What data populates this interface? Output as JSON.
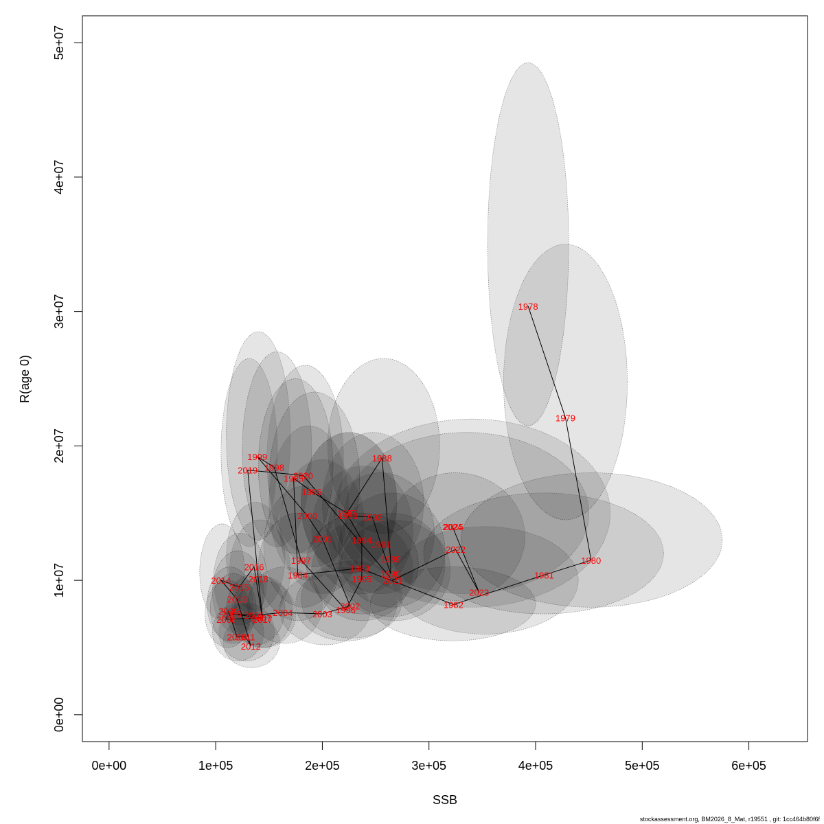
{
  "footer": "stockassessment.org, BM2026_8_Mat, r19551 , git: 1cc464b80f6f",
  "chart_data": {
    "type": "scatter",
    "title": "",
    "xlabel": "SSB",
    "ylabel": "R(age 0)",
    "xlim": [
      -25000,
      655000
    ],
    "ylim": [
      -2000000,
      52000000
    ],
    "x_ticks": [
      0,
      100000,
      200000,
      300000,
      400000,
      500000,
      600000
    ],
    "x_tick_labels": [
      "0e+00",
      "1e+05",
      "2e+05",
      "3e+05",
      "4e+05",
      "5e+05",
      "6e+05"
    ],
    "y_ticks": [
      0,
      10000000,
      20000000,
      30000000,
      40000000,
      50000000
    ],
    "y_tick_labels": [
      "0e+00",
      "1e+07",
      "2e+07",
      "3e+07",
      "4e+07",
      "5e+07"
    ],
    "grid": false,
    "label_color": "#ff0000",
    "line_color": "#000000",
    "ellipse_fill": "#000000",
    "ellipse_fill_opacity": 0.1,
    "ellipse_stroke": "#777777",
    "points": [
      {
        "year": "1978",
        "ssb": 393000,
        "rec": 30400000,
        "ssb_lo": 355000,
        "ssb_hi": 431000,
        "rec_lo": 21500000,
        "rec_hi": 48500000
      },
      {
        "year": "1979",
        "ssb": 428000,
        "rec": 22100000,
        "ssb_lo": 370000,
        "ssb_hi": 486000,
        "rec_lo": 14500000,
        "rec_hi": 35000000
      },
      {
        "year": "1980",
        "ssb": 452000,
        "rec": 11500000,
        "ssb_lo": 330000,
        "ssb_hi": 575000,
        "rec_lo": 8000000,
        "rec_hi": 18000000
      },
      {
        "year": "1981",
        "ssb": 408000,
        "rec": 10400000,
        "ssb_lo": 295000,
        "ssb_hi": 520000,
        "rec_lo": 7500000,
        "rec_hi": 16500000
      },
      {
        "year": "1982",
        "ssb": 323000,
        "rec": 8200000,
        "ssb_lo": 245000,
        "ssb_hi": 400000,
        "rec_lo": 5500000,
        "rec_hi": 11000000
      },
      {
        "year": "1983",
        "ssb": 235000,
        "rec": 10900000,
        "ssb_lo": 185000,
        "ssb_hi": 290000,
        "rec_lo": 7500000,
        "rec_hi": 15000000
      },
      {
        "year": "1984",
        "ssb": 177000,
        "rec": 10400000,
        "ssb_lo": 140000,
        "ssb_hi": 215000,
        "rec_lo": 7000000,
        "rec_hi": 15000000
      },
      {
        "year": "1985",
        "ssb": 173000,
        "rec": 17600000,
        "ssb_lo": 140000,
        "ssb_hi": 210000,
        "rec_lo": 12000000,
        "rec_hi": 25000000
      },
      {
        "year": "1986",
        "ssb": 190000,
        "rec": 16600000,
        "ssb_lo": 150000,
        "ssb_hi": 235000,
        "rec_lo": 11000000,
        "rec_hi": 24000000
      },
      {
        "year": "1987",
        "ssb": 223000,
        "rec": 15000000,
        "ssb_lo": 180000,
        "ssb_hi": 270000,
        "rec_lo": 10500000,
        "rec_hi": 21000000
      },
      {
        "year": "1988",
        "ssb": 256000,
        "rec": 19100000,
        "ssb_lo": 205000,
        "ssb_hi": 310000,
        "rec_lo": 13500000,
        "rec_hi": 26500000
      },
      {
        "year": "1989",
        "ssb": 264000,
        "rec": 11600000,
        "ssb_lo": 215000,
        "ssb_hi": 315000,
        "rec_lo": 8000000,
        "rec_hi": 16500000
      },
      {
        "year": "1990",
        "ssb": 264000,
        "rec": 10500000,
        "ssb_lo": 215000,
        "ssb_hi": 315000,
        "rec_lo": 7300000,
        "rec_hi": 15000000
      },
      {
        "year": "1991",
        "ssb": 255000,
        "rec": 12700000,
        "ssb_lo": 205000,
        "ssb_hi": 305000,
        "rec_lo": 9000000,
        "rec_hi": 18000000
      },
      {
        "year": "1992",
        "ssb": 247000,
        "rec": 14700000,
        "ssb_lo": 200000,
        "ssb_hi": 295000,
        "rec_lo": 10500000,
        "rec_hi": 21000000
      },
      {
        "year": "1993",
        "ssb": 224000,
        "rec": 14800000,
        "ssb_lo": 180000,
        "ssb_hi": 270000,
        "rec_lo": 10500000,
        "rec_hi": 21000000
      },
      {
        "year": "1994",
        "ssb": 237000,
        "rec": 13000000,
        "ssb_lo": 190000,
        "ssb_hi": 285000,
        "rec_lo": 9000000,
        "rec_hi": 18500000
      },
      {
        "year": "1995",
        "ssb": 237000,
        "rec": 10100000,
        "ssb_lo": 190000,
        "ssb_hi": 285000,
        "rec_lo": 7000000,
        "rec_hi": 14500000
      },
      {
        "year": "1996",
        "ssb": 222000,
        "rec": 7800000,
        "ssb_lo": 175000,
        "ssb_hi": 270000,
        "rec_lo": 5500000,
        "rec_hi": 11000000
      },
      {
        "year": "1997",
        "ssb": 180000,
        "rec": 11500000,
        "ssb_lo": 145000,
        "ssb_hi": 220000,
        "rec_lo": 8000000,
        "rec_hi": 17000000
      },
      {
        "year": "1998",
        "ssb": 155000,
        "rec": 18400000,
        "ssb_lo": 125000,
        "ssb_hi": 190000,
        "rec_lo": 12500000,
        "rec_hi": 27000000
      },
      {
        "year": "1999",
        "ssb": 139000,
        "rec": 19200000,
        "ssb_lo": 110000,
        "ssb_hi": 170000,
        "rec_lo": 13000000,
        "rec_hi": 28500000
      },
      {
        "year": "2000",
        "ssb": 186000,
        "rec": 14800000,
        "ssb_lo": 150000,
        "ssb_hi": 225000,
        "rec_lo": 10000000,
        "rec_hi": 21500000
      },
      {
        "year": "2001",
        "ssb": 200000,
        "rec": 13100000,
        "ssb_lo": 160000,
        "ssb_hi": 240000,
        "rec_lo": 9000000,
        "rec_hi": 19000000
      },
      {
        "year": "2002",
        "ssb": 226000,
        "rec": 8100000,
        "ssb_lo": 180000,
        "ssb_hi": 275000,
        "rec_lo": 5700000,
        "rec_hi": 11500000
      },
      {
        "year": "2003",
        "ssb": 200000,
        "rec": 7500000,
        "ssb_lo": 160000,
        "ssb_hi": 245000,
        "rec_lo": 5200000,
        "rec_hi": 10500000
      },
      {
        "year": "2004",
        "ssb": 163000,
        "rec": 7600000,
        "ssb_lo": 130000,
        "ssb_hi": 200000,
        "rec_lo": 5300000,
        "rec_hi": 11000000
      },
      {
        "year": "2005",
        "ssb": 136000,
        "rec": 7400000,
        "ssb_lo": 110000,
        "ssb_hi": 165000,
        "rec_lo": 5200000,
        "rec_hi": 10500000
      },
      {
        "year": "2006",
        "ssb": 115000,
        "rec": 7500000,
        "ssb_lo": 95000,
        "ssb_hi": 138000,
        "rec_lo": 5300000,
        "rec_hi": 10500000
      },
      {
        "year": "2007",
        "ssb": 143000,
        "rec": 7200000,
        "ssb_lo": 115000,
        "ssb_hi": 172000,
        "rec_lo": 5000000,
        "rec_hi": 10300000
      },
      {
        "year": "2008",
        "ssb": 110000,
        "rec": 7100000,
        "ssb_lo": 90000,
        "ssb_hi": 133000,
        "rec_lo": 5000000,
        "rec_hi": 10000000
      },
      {
        "year": "2009",
        "ssb": 112000,
        "rec": 7700000,
        "ssb_lo": 92000,
        "ssb_hi": 135000,
        "rec_lo": 5500000,
        "rec_hi": 11000000
      },
      {
        "year": "2010",
        "ssb": 120000,
        "rec": 5800000,
        "ssb_lo": 97000,
        "ssb_hi": 145000,
        "rec_lo": 4000000,
        "rec_hi": 8300000
      },
      {
        "year": "2011",
        "ssb": 128000,
        "rec": 5800000,
        "ssb_lo": 103000,
        "ssb_hi": 155000,
        "rec_lo": 4000000,
        "rec_hi": 8300000
      },
      {
        "year": "2012",
        "ssb": 133000,
        "rec": 5100000,
        "ssb_lo": 107000,
        "ssb_hi": 160000,
        "rec_lo": 3500000,
        "rec_hi": 7300000
      },
      {
        "year": "2013",
        "ssb": 120000,
        "rec": 8600000,
        "ssb_lo": 97000,
        "ssb_hi": 145000,
        "rec_lo": 6000000,
        "rec_hi": 12200000
      },
      {
        "year": "2014",
        "ssb": 105000,
        "rec": 10000000,
        "ssb_lo": 85000,
        "ssb_hi": 127000,
        "rec_lo": 7000000,
        "rec_hi": 14200000
      },
      {
        "year": "2015",
        "ssb": 122000,
        "rec": 9500000,
        "ssb_lo": 98000,
        "ssb_hi": 148000,
        "rec_lo": 6600000,
        "rec_hi": 13500000
      },
      {
        "year": "2016",
        "ssb": 136000,
        "rec": 11000000,
        "ssb_lo": 110000,
        "ssb_hi": 165000,
        "rec_lo": 7700000,
        "rec_hi": 15800000
      },
      {
        "year": "2017",
        "ssb": 144000,
        "rec": 7100000,
        "ssb_lo": 116000,
        "ssb_hi": 175000,
        "rec_lo": 5000000,
        "rec_hi": 10000000
      },
      {
        "year": "2018",
        "ssb": 140000,
        "rec": 10100000,
        "ssb_lo": 113000,
        "ssb_hi": 170000,
        "rec_lo": 7000000,
        "rec_hi": 14500000
      },
      {
        "year": "2019",
        "ssb": 130000,
        "rec": 18200000,
        "ssb_lo": 105000,
        "ssb_hi": 158000,
        "rec_lo": 12500000,
        "rec_hi": 26500000
      },
      {
        "year": "2020",
        "ssb": 182000,
        "rec": 17800000,
        "ssb_lo": 148000,
        "ssb_hi": 220000,
        "rec_lo": 12000000,
        "rec_hi": 26000000
      },
      {
        "year": "2021",
        "ssb": 266000,
        "rec": 10000000,
        "ssb_lo": 215000,
        "ssb_hi": 320000,
        "rec_lo": 7000000,
        "rec_hi": 14500000
      },
      {
        "year": "2022",
        "ssb": 325000,
        "rec": 12300000,
        "ssb_lo": 260000,
        "ssb_hi": 390000,
        "rec_lo": 8500000,
        "rec_hi": 18000000
      },
      {
        "year": "2023",
        "ssb": 347000,
        "rec": 9100000,
        "ssb_lo": 265000,
        "ssb_hi": 440000,
        "rec_lo": 6000000,
        "rec_hi": 14000000
      },
      {
        "year": "2024",
        "ssb": 322000,
        "rec": 14000000,
        "ssb_lo": 220000,
        "ssb_hi": 450000,
        "rec_lo": 9000000,
        "rec_hi": 21000000
      },
      {
        "year": "2025",
        "ssb": 323000,
        "rec": 14000000,
        "ssb_lo": 210000,
        "ssb_hi": 470000,
        "rec_lo": 8000000,
        "rec_hi": 22000000
      }
    ]
  }
}
